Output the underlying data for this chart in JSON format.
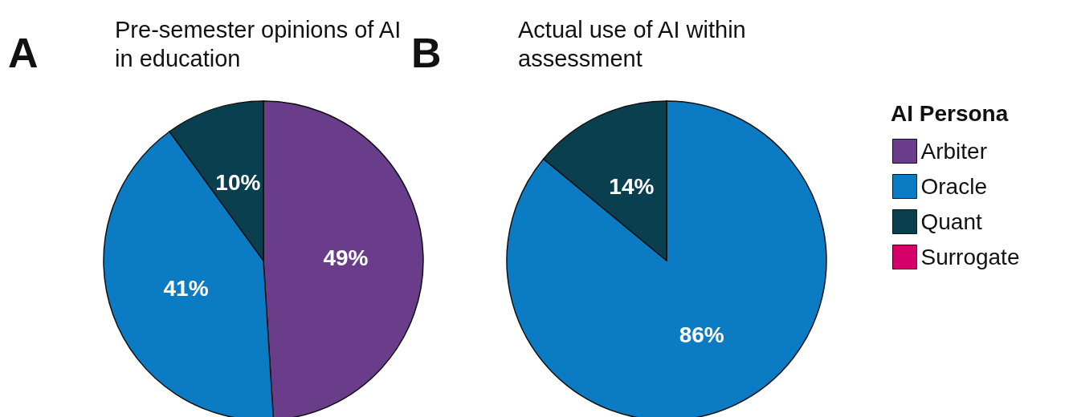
{
  "chart_data": {
    "type": "pie",
    "annotations": [
      "A",
      "B"
    ],
    "categories": [
      "Arbiter",
      "Oracle",
      "Quant",
      "Surrogate"
    ],
    "colors": [
      "#6a3d8a",
      "#0b7cc4",
      "#0a3f4f",
      "#d6006b"
    ],
    "legend": "right",
    "legend_title": "AI Persona",
    "series": [
      {
        "name": "Pre-semester opinions of AI in education",
        "values": [
          49,
          41,
          10,
          0
        ],
        "value_labels": [
          "49%",
          "41%",
          "10%",
          null
        ]
      },
      {
        "name": "Actual use of AI within assessment",
        "values": [
          0,
          86,
          14,
          0
        ],
        "value_labels": [
          null,
          "86%",
          "14%",
          null
        ]
      }
    ]
  }
}
